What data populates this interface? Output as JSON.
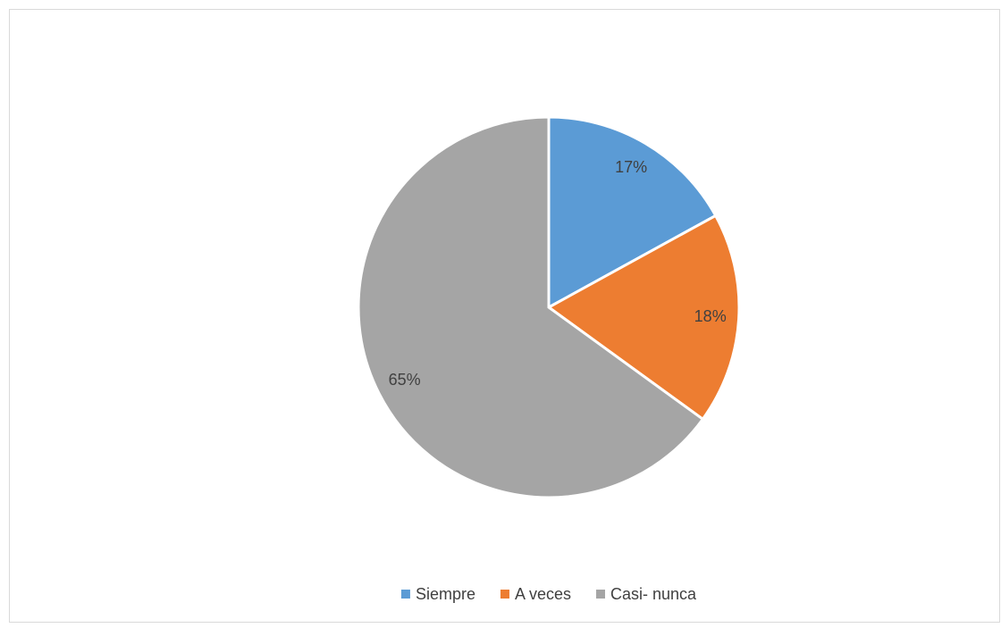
{
  "chart_data": {
    "type": "pie",
    "categories": [
      "Siempre",
      "A veces",
      "Casi- nunca"
    ],
    "values": [
      17,
      18,
      65
    ],
    "value_labels": [
      "17%",
      "18%",
      "65%"
    ],
    "colors": [
      "#5b9bd5",
      "#ed7d31",
      "#a5a5a5"
    ],
    "legend": "bottom"
  }
}
